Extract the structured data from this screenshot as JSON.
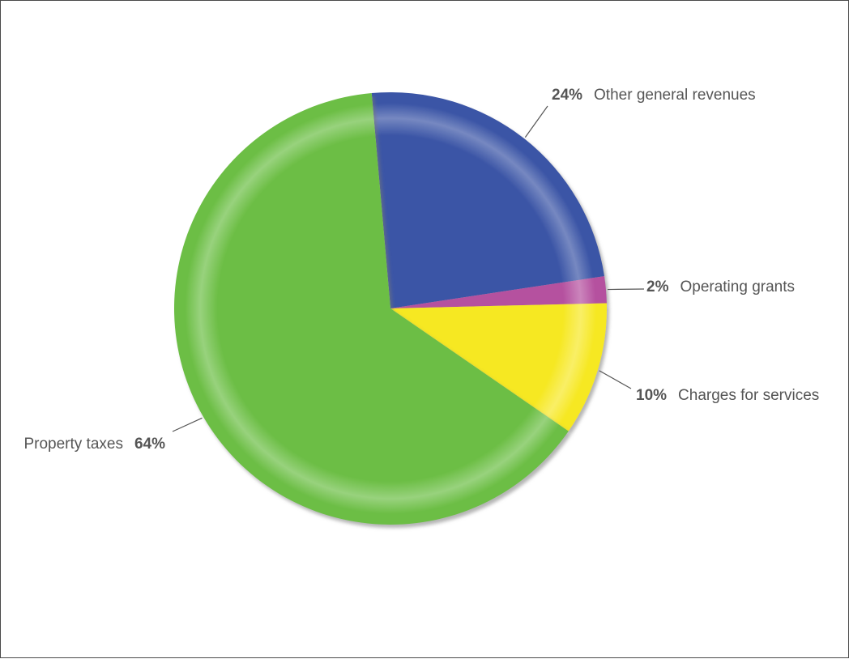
{
  "chart_data": {
    "type": "pie",
    "title": "",
    "slices": [
      {
        "label": "Other general revenues",
        "value": 24,
        "pct_text": "24%",
        "color": "#3b55a6"
      },
      {
        "label": "Operating grants",
        "value": 2,
        "pct_text": "2%",
        "color": "#b5519f"
      },
      {
        "label": "Charges for services",
        "value": 10,
        "pct_text": "10%",
        "color": "#f6e824"
      },
      {
        "label": "Property taxes",
        "value": 64,
        "pct_text": "64%",
        "color": "#6cbe45"
      }
    ],
    "legend": "none",
    "start_angle_deg": -5
  }
}
